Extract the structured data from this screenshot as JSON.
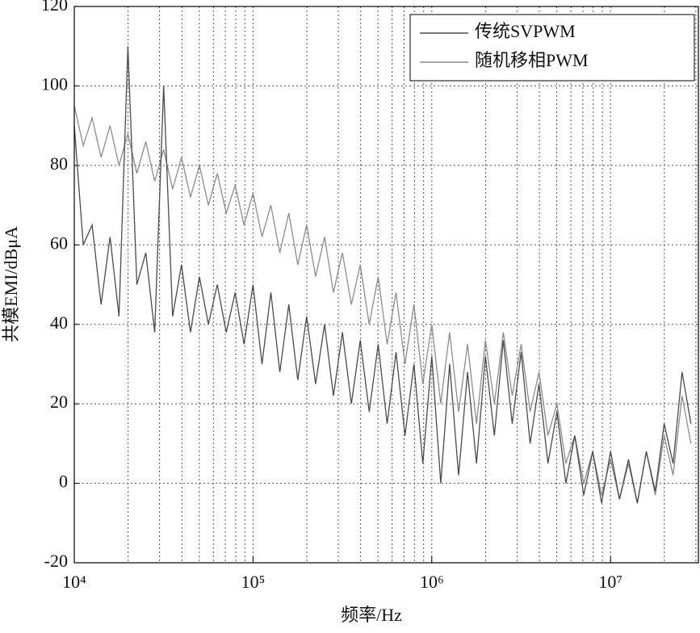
{
  "chart_data": {
    "type": "line",
    "x_label": "频率/Hz",
    "y_label": "共模EMI/dBμA",
    "x": [
      10000,
      11220,
      12589,
      14125,
      15849,
      17783,
      19953,
      22387,
      25119,
      28184,
      31623,
      35481,
      39811,
      44668,
      50119,
      56234,
      63096,
      70795,
      79433,
      89125,
      100000,
      112202,
      125893,
      141254,
      158489,
      177828,
      199526,
      223872,
      251189,
      281838,
      316228,
      354813,
      398107,
      446684,
      501187,
      562341,
      630957,
      707946,
      794328,
      891251,
      1000000,
      1122018,
      1258925,
      1412538,
      1584893,
      1778279,
      1995262,
      2238721,
      2511886,
      2818383,
      3162278,
      3548134,
      3981072,
      4466836,
      5011872,
      5623413,
      6309573,
      7079458,
      7943282,
      8912509,
      10000000,
      11220185,
      12589254,
      14125375,
      15848932,
      17782794,
      19952623,
      22387211,
      25118864,
      28183829
    ],
    "series": [
      {
        "name": "传统SVPWM",
        "color": "#4a4a4a",
        "values": [
          90,
          60,
          65,
          45,
          62,
          42,
          110,
          50,
          58,
          38,
          100,
          42,
          55,
          38,
          52,
          40,
          50,
          38,
          48,
          35,
          50,
          30,
          48,
          28,
          45,
          26,
          42,
          25,
          40,
          22,
          38,
          20,
          36,
          18,
          35,
          15,
          33,
          12,
          30,
          5,
          32,
          0,
          30,
          2,
          28,
          5,
          32,
          12,
          36,
          15,
          33,
          10,
          25,
          5,
          18,
          0,
          12,
          -3,
          8,
          -5,
          8,
          -4,
          6,
          -5,
          8,
          -2,
          15,
          5,
          28,
          15
        ]
      },
      {
        "name": "随机移相PWM",
        "color": "#8c8c8c",
        "values": [
          95,
          85,
          92,
          82,
          90,
          80,
          88,
          78,
          86,
          76,
          84,
          74,
          82,
          72,
          80,
          70,
          78,
          68,
          75,
          65,
          73,
          62,
          70,
          58,
          68,
          55,
          65,
          52,
          62,
          48,
          58,
          45,
          55,
          40,
          52,
          35,
          48,
          30,
          45,
          25,
          40,
          20,
          38,
          18,
          35,
          15,
          36,
          20,
          38,
          22,
          35,
          18,
          28,
          12,
          20,
          5,
          12,
          0,
          8,
          -3,
          6,
          -4,
          5,
          -5,
          8,
          -3,
          12,
          2,
          22,
          10
        ]
      }
    ],
    "xscale": "log",
    "xlim": [
      10000,
      31000000
    ],
    "xticks": [
      {
        "value": 10000,
        "label": "10⁴"
      },
      {
        "value": 100000,
        "label": "10⁵"
      },
      {
        "value": 1000000,
        "label": "10⁶"
      },
      {
        "value": 10000000,
        "label": "10⁷"
      }
    ],
    "xminorticks": [
      20000,
      30000,
      40000,
      50000,
      60000,
      70000,
      80000,
      90000,
      200000,
      300000,
      400000,
      500000,
      600000,
      700000,
      800000,
      900000,
      2000000,
      3000000,
      4000000,
      5000000,
      6000000,
      7000000,
      8000000,
      9000000,
      20000000,
      30000000
    ],
    "ylim": [
      -20,
      120
    ],
    "yticks": [
      -20,
      0,
      20,
      40,
      60,
      80,
      100,
      120
    ],
    "grid": true,
    "legend": "upper right"
  }
}
